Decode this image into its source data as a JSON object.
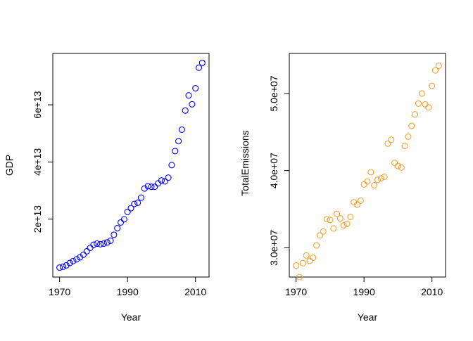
{
  "chart_data": [
    {
      "type": "scatter",
      "xlabel": "Year",
      "ylabel": "GDP",
      "xlim": [
        1968,
        2014
      ],
      "ylim": [
        -300000000000.0,
        78000000000000.0
      ],
      "xticks": [
        {
          "value": 1970,
          "label": "1970"
        },
        {
          "value": 1990,
          "label": "1990"
        },
        {
          "value": 2010,
          "label": "2010"
        }
      ],
      "yticks": [
        {
          "value": 20000000000000.0,
          "label": "2e+13"
        },
        {
          "value": 40000000000000.0,
          "label": "4e+13"
        },
        {
          "value": 60000000000000.0,
          "label": "6e+13"
        }
      ],
      "grid": false,
      "color": "#0000ff",
      "x": [
        1970,
        1971,
        1972,
        1973,
        1974,
        1975,
        1976,
        1977,
        1978,
        1979,
        1980,
        1981,
        1982,
        1983,
        1984,
        1985,
        1986,
        1987,
        1988,
        1989,
        1990,
        1991,
        1992,
        1993,
        1994,
        1995,
        1996,
        1997,
        1998,
        1999,
        2000,
        2001,
        2002,
        2003,
        2004,
        2005,
        2006,
        2007,
        2008,
        2009,
        2010,
        2011,
        2012
      ],
      "y": [
        3000000000000.0,
        3300000000000.0,
        3800000000000.0,
        4600000000000.0,
        5300000000000.0,
        5900000000000.0,
        6600000000000.0,
        7500000000000.0,
        8700000000000.0,
        9900000000000.0,
        11000000000000.0,
        11400000000000.0,
        11200000000000.0,
        11400000000000.0,
        11800000000000.0,
        12400000000000.0,
        14500000000000.0,
        16800000000000.0,
        18800000000000.0,
        19900000000000.0,
        22500000000000.0,
        23800000000000.0,
        25300000000000.0,
        25700000000000.0,
        27500000000000.0,
        30700000000000.0,
        31500000000000.0,
        31300000000000.0,
        31300000000000.0,
        32500000000000.0,
        33500000000000.0,
        33200000000000.0,
        34500000000000.0,
        38900000000000.0,
        43800000000000.0,
        47300000000000.0,
        51300000000000.0,
        58000000000000.0,
        63300000000000.0,
        60200000000000.0,
        65800000000000.0,
        73000000000000.0,
        74700000000000.0
      ]
    },
    {
      "type": "scatter",
      "xlabel": "Year",
      "ylabel": "TotalEmissions",
      "xlim": [
        1968,
        2014
      ],
      "ylim": [
        26200000.0,
        55200000.0
      ],
      "xticks": [
        {
          "value": 1970,
          "label": "1970"
        },
        {
          "value": 1990,
          "label": "1990"
        },
        {
          "value": 2010,
          "label": "2010"
        }
      ],
      "yticks": [
        {
          "value": 30000000.0,
          "label": "3.0e+07"
        },
        {
          "value": 40000000.0,
          "label": "4.0e+07"
        },
        {
          "value": 50000000.0,
          "label": "5.0e+07"
        }
      ],
      "grid": false,
      "color": "#f4a12f",
      "x": [
        1970,
        1971,
        1972,
        1973,
        1974,
        1975,
        1976,
        1977,
        1978,
        1979,
        1980,
        1981,
        1982,
        1983,
        1984,
        1985,
        1986,
        1987,
        1988,
        1989,
        1990,
        1991,
        1992,
        1993,
        1994,
        1995,
        1996,
        1997,
        1998,
        1999,
        2000,
        2001,
        2002,
        2003,
        2004,
        2005,
        2006,
        2007,
        2008,
        2009,
        2010,
        2011,
        2012
      ],
      "y": [
        27700000.0,
        26200000.0,
        28000000.0,
        29000000.0,
        28300000.0,
        28700000.0,
        30300000.0,
        31600000.0,
        32100000.0,
        33700000.0,
        33600000.0,
        32500000.0,
        34400000.0,
        33800000.0,
        32900000.0,
        33100000.0,
        34000000.0,
        35900000.0,
        35600000.0,
        36100000.0,
        38200000.0,
        38600000.0,
        39800000.0,
        38100000.0,
        38800000.0,
        39000000.0,
        39200000.0,
        43500000.0,
        44000000.0,
        41000000.0,
        40600000.0,
        40400000.0,
        43200000.0,
        44400000.0,
        45800000.0,
        47300000.0,
        48700000.0,
        50000000.0,
        48600000.0,
        48200000.0,
        51000000.0,
        53000000.0,
        53600000.0
      ]
    }
  ]
}
